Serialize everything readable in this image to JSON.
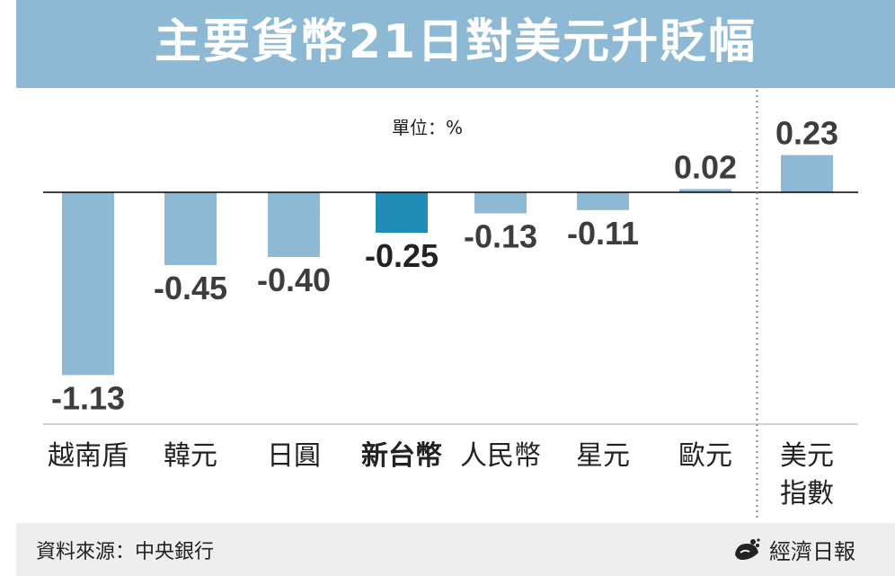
{
  "title": "主要貨幣21日對美元升貶幅",
  "unit_label": "單位：%",
  "source": "資料來源：中央銀行",
  "publisher": "經濟日報",
  "publisher_logo_icon": "udn-logo-icon",
  "colors": {
    "title_bar": "#8db9d5",
    "bar": "#8db9d5",
    "highlight_bar": "#1f8db8",
    "footer_bg": "#eeeeee"
  },
  "chart_data": {
    "type": "bar",
    "categories": [
      "越南盾",
      "韓元",
      "日圓",
      "新台幣",
      "人民幣",
      "星元",
      "歐元",
      "美元指數"
    ],
    "category_lines": [
      [
        "越南盾"
      ],
      [
        "韓元"
      ],
      [
        "日圓"
      ],
      [
        "新台幣"
      ],
      [
        "人民幣"
      ],
      [
        "星元"
      ],
      [
        "歐元"
      ],
      [
        "美元",
        "指數"
      ]
    ],
    "values": [
      -1.13,
      -0.45,
      -0.4,
      -0.25,
      -0.13,
      -0.11,
      0.02,
      0.23
    ],
    "value_labels": [
      "-1.13",
      "-0.45",
      "-0.40",
      "-0.25",
      "-0.13",
      "-0.11",
      "0.02",
      "0.23"
    ],
    "highlight": "新台幣",
    "separator_before": "美元指數",
    "ylim": [
      -1.13,
      0.23
    ],
    "grid": false,
    "legend": "none"
  }
}
